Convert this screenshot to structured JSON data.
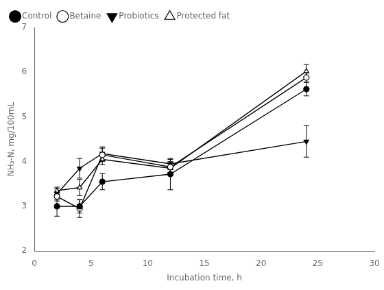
{
  "chart_data": {
    "type": "line",
    "x": [
      2,
      4,
      6,
      12,
      24
    ],
    "series": [
      {
        "name": "Control",
        "color": "#000000",
        "marker": "circle",
        "values": [
          3.0,
          3.0,
          3.55,
          3.72,
          5.62
        ],
        "errors": [
          0.22,
          0.15,
          0.18,
          0.35,
          0.15
        ]
      },
      {
        "name": "Betaine",
        "color": "#000000",
        "marker": "circle-open",
        "values": [
          3.22,
          2.95,
          4.15,
          3.88,
          5.88
        ],
        "errors": [
          0.1,
          0.2,
          0.15,
          0.12,
          0.1
        ]
      },
      {
        "name": "Probiotics",
        "color": "#000000",
        "marker": "triangle-down",
        "values": [
          3.28,
          3.85,
          4.18,
          3.95,
          4.45
        ],
        "errors": [
          0.12,
          0.22,
          0.15,
          0.1,
          0.35
        ]
      },
      {
        "name": "Protected fat",
        "color": "#000000",
        "marker": "triangle-up-open",
        "values": [
          3.35,
          3.42,
          4.05,
          3.85,
          6.02
        ],
        "errors": [
          0.08,
          0.18,
          0.12,
          0.12,
          0.15
        ]
      }
    ],
    "x_label": "Incubation time, h",
    "y_label": "NH₃-N, mg/100mL",
    "xlim": [
      0,
      30
    ],
    "ylim": [
      2,
      7
    ],
    "xticks": [
      0,
      5,
      10,
      15,
      20,
      25,
      30
    ],
    "yticks": [
      2,
      3,
      4,
      5,
      6,
      7
    ],
    "grid": false,
    "legend": "upper left"
  }
}
